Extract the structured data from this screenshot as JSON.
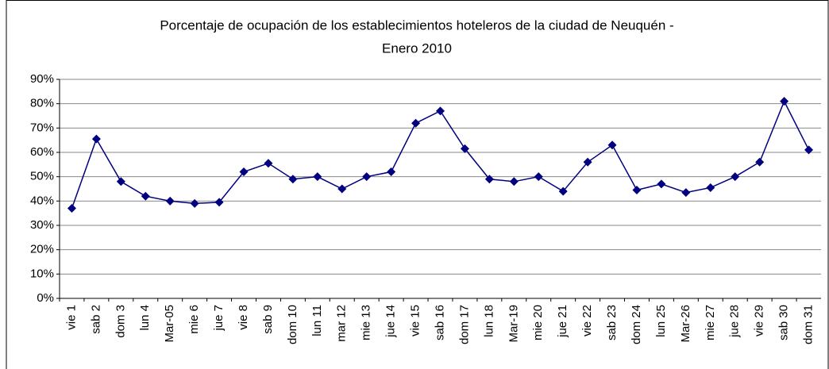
{
  "chart_data": {
    "type": "line",
    "title": "Porcentaje de ocupación de los establecimientos hoteleros de la ciudad de Neuquén -",
    "subtitle": "Enero 2010",
    "categories": [
      "vie 1",
      "sab 2",
      "dom 3",
      "lun 4",
      "Mar-05",
      "mie 6",
      "jue 7",
      "vie 8",
      "sab 9",
      "dom 10",
      "lun 11",
      "mar 12",
      "mie 13",
      "jue 14",
      "vie 15",
      "sab 16",
      "dom 17",
      "lun 18",
      "Mar-19",
      "mie 20",
      "jue 21",
      "vie 22",
      "sab 23",
      "dom 24",
      "lun 25",
      "Mar-26",
      "mie 27",
      "jue 28",
      "vie 29",
      "sab 30",
      "dom 31"
    ],
    "values": [
      37,
      65.5,
      48,
      42,
      40,
      39,
      39.5,
      52,
      55.5,
      49,
      50,
      45,
      50,
      52,
      72,
      77,
      61.5,
      49,
      48,
      50,
      44,
      56,
      63,
      44.5,
      47,
      43.5,
      45.5,
      50,
      56,
      81,
      61
    ],
    "color": "#000080",
    "ylim": [
      0,
      90
    ],
    "yticks": [
      {
        "value": 0,
        "label": "0%"
      },
      {
        "value": 10,
        "label": "10%"
      },
      {
        "value": 20,
        "label": "20%"
      },
      {
        "value": 30,
        "label": "30%"
      },
      {
        "value": 40,
        "label": "40%"
      },
      {
        "value": 50,
        "label": "50%"
      },
      {
        "value": 60,
        "label": "60%"
      },
      {
        "value": 70,
        "label": "70%"
      },
      {
        "value": 80,
        "label": "80%"
      },
      {
        "value": 90,
        "label": "90%"
      }
    ],
    "grid": true
  }
}
